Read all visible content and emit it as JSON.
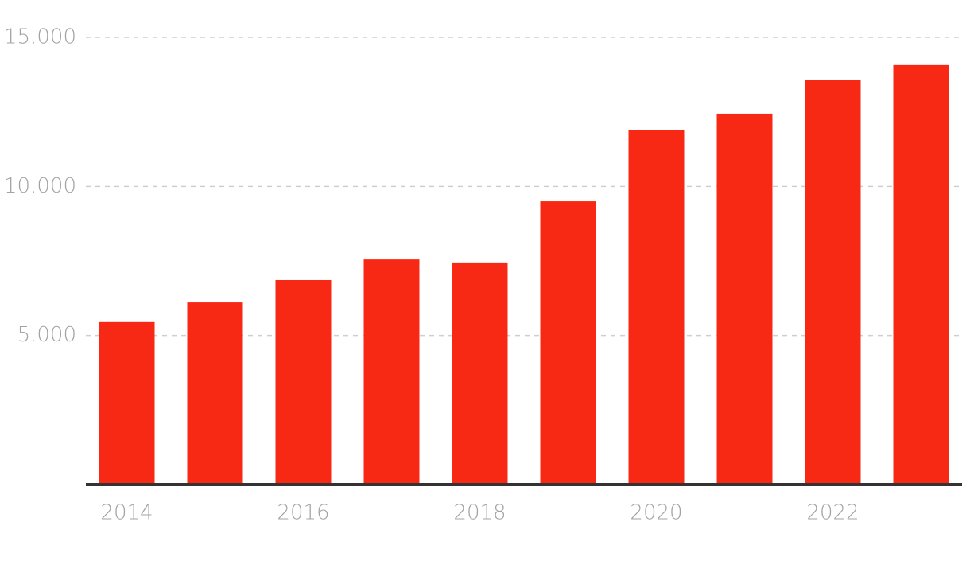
{
  "chart_data": {
    "type": "bar",
    "categories": [
      "2014",
      null,
      "2016",
      null,
      "2018",
      null,
      "2020",
      null,
      "2022",
      null
    ],
    "values": [
      5450,
      6110,
      6860,
      7550,
      7450,
      9500,
      11880,
      12440,
      13560,
      14070
    ],
    "color": "#f72915",
    "ylim": [
      0,
      15000
    ],
    "yticks": [
      {
        "value": 5000,
        "label": "5.000"
      },
      {
        "value": 10000,
        "label": "10.000"
      },
      {
        "value": 15000,
        "label": "15.000"
      }
    ],
    "grid": true
  }
}
